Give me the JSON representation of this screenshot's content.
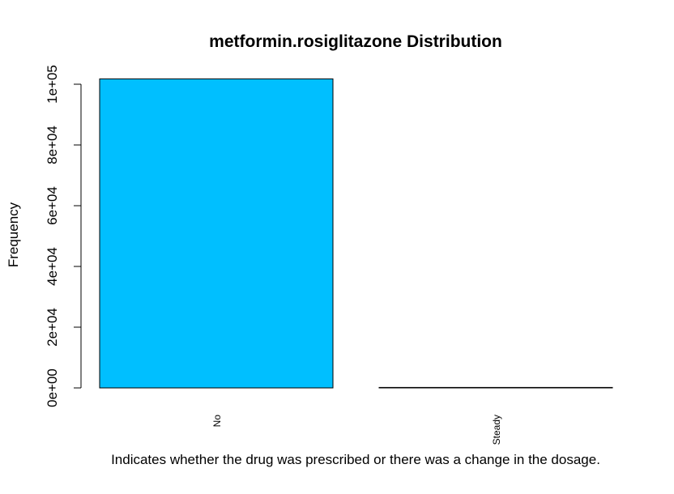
{
  "chart_data": {
    "type": "bar",
    "title": "metformin.rosiglitazone Distribution",
    "xlabel": "Indicates whether the drug was prescribed or there was a change in the dosage.",
    "ylabel": "Frequency",
    "categories": [
      "No",
      "Steady"
    ],
    "values": [
      101764,
      2
    ],
    "ylim": [
      0,
      100000
    ],
    "yticks": [
      "0e+00",
      "2e+04",
      "4e+04",
      "6e+04",
      "8e+04",
      "1e+05"
    ],
    "ytick_values": [
      0,
      20000,
      40000,
      60000,
      80000,
      100000
    ],
    "bar_color": "#00BFFF",
    "grid": false
  }
}
